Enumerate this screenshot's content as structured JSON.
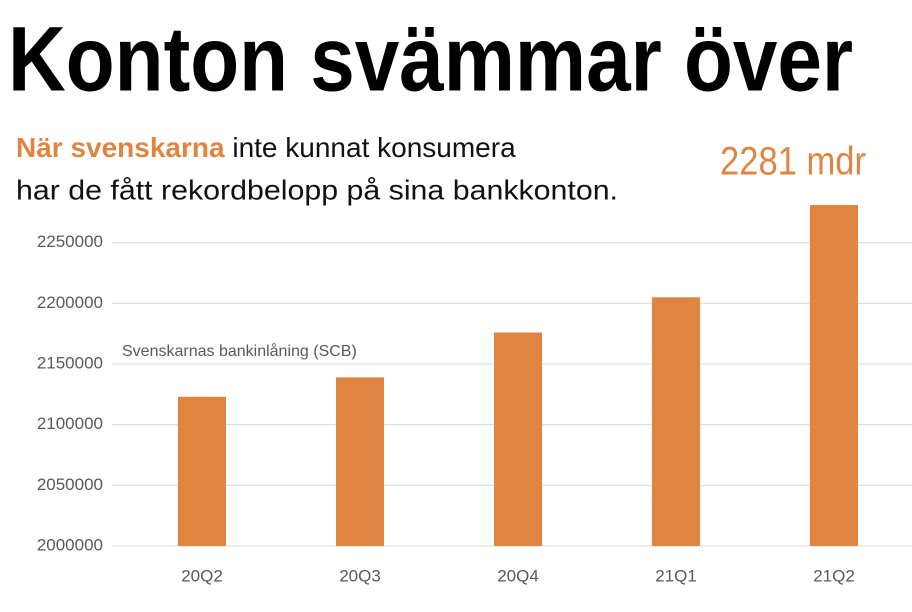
{
  "chart_data": {
    "type": "bar",
    "title": "Konton svämmar över",
    "subtitle_highlight": "När svenskarna",
    "subtitle_lines": [
      "inte kunnat konsumera",
      "har de fått rekordbelopp på sina bankkonton."
    ],
    "annotation": "2281 mdr",
    "series_label": "Svenskarnas bankinlåning (SCB)",
    "categories": [
      "20Q2",
      "20Q3",
      "20Q4",
      "21Q1",
      "21Q2"
    ],
    "values": [
      2123000,
      2139000,
      2176000,
      2205000,
      2281000
    ],
    "color": "#e08541",
    "ylim": [
      2000000,
      2300000
    ],
    "yticks": [
      2000000,
      2050000,
      2100000,
      2150000,
      2200000,
      2250000
    ],
    "grid": true
  }
}
